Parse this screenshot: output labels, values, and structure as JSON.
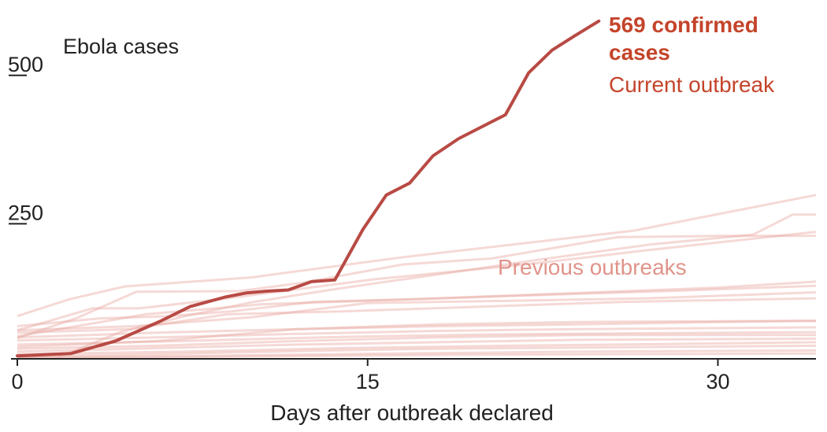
{
  "chart_data": {
    "type": "line",
    "xlabel": "Days after outbreak declared",
    "ylabel_unit": "Ebola cases",
    "x_ticks": [
      0,
      15,
      30
    ],
    "y_ticks": [
      250,
      500
    ],
    "xlim": [
      0,
      34.2
    ],
    "ylim": [
      0,
      570
    ],
    "highlight": {
      "label_value": "569 confirmed",
      "label_value_line2": "cases",
      "label_series": "Current outbreak",
      "color": "#b84a44",
      "points": [
        [
          0,
          5
        ],
        [
          2.3,
          9
        ],
        [
          4.2,
          30
        ],
        [
          6.1,
          63
        ],
        [
          7.4,
          88
        ],
        [
          8.9,
          104
        ],
        [
          9.8,
          111
        ],
        [
          10.7,
          114
        ],
        [
          11.6,
          116
        ],
        [
          12.6,
          130
        ],
        [
          13.6,
          133
        ],
        [
          14.8,
          218
        ],
        [
          15.8,
          276
        ],
        [
          16.8,
          296
        ],
        [
          17.8,
          342
        ],
        [
          18.9,
          371
        ],
        [
          19.9,
          391
        ],
        [
          20.9,
          411
        ],
        [
          21.9,
          482
        ],
        [
          22.9,
          520
        ],
        [
          23.9,
          545
        ],
        [
          24.9,
          569
        ]
      ]
    },
    "previous": {
      "label": "Previous outbreaks",
      "color": "#e9aba3",
      "series": [
        [
          [
            0,
            72
          ],
          [
            2.2,
            100
          ],
          [
            4.6,
            122
          ],
          [
            10,
            137
          ],
          [
            16.7,
            172
          ],
          [
            26.4,
            216
          ],
          [
            34.2,
            276
          ]
        ],
        [
          [
            0,
            48
          ],
          [
            3.2,
            85
          ],
          [
            5.2,
            85
          ],
          [
            8.6,
            100
          ],
          [
            15.3,
            134
          ],
          [
            22,
            160
          ],
          [
            27,
            183
          ],
          [
            34.2,
            214
          ]
        ],
        [
          [
            1.6,
            0
          ],
          [
            4.4,
            45
          ],
          [
            7.2,
            72
          ],
          [
            10,
            95
          ],
          [
            13.7,
            118
          ],
          [
            18.5,
            145
          ],
          [
            22.5,
            168
          ],
          [
            27.2,
            193
          ],
          [
            31.5,
            209
          ],
          [
            33.2,
            243
          ],
          [
            34.2,
            243
          ]
        ],
        [
          [
            0,
            35
          ],
          [
            2.5,
            68
          ],
          [
            5.1,
            113
          ],
          [
            9.5,
            114
          ],
          [
            12.2,
            128
          ],
          [
            16.5,
            159
          ],
          [
            20.3,
            169
          ],
          [
            25.7,
            205
          ],
          [
            30,
            207
          ],
          [
            34.2,
            207
          ]
        ],
        [
          [
            0,
            55
          ],
          [
            3.5,
            68
          ],
          [
            6.5,
            72
          ],
          [
            9.2,
            80
          ],
          [
            12.7,
            96
          ],
          [
            17.4,
            101
          ],
          [
            23.4,
            110
          ],
          [
            30,
            120
          ],
          [
            34.2,
            130
          ]
        ],
        [
          [
            0,
            38
          ],
          [
            5.5,
            75
          ],
          [
            10.5,
            92
          ],
          [
            16,
            99
          ],
          [
            22,
            107
          ],
          [
            28.5,
            115
          ],
          [
            34.2,
            123
          ]
        ],
        [
          [
            0,
            48
          ],
          [
            5,
            55
          ],
          [
            10,
            70
          ],
          [
            15,
            94
          ],
          [
            21.4,
            98
          ],
          [
            27,
            102
          ],
          [
            34.2,
            112
          ]
        ],
        [
          [
            0,
            44
          ],
          [
            4.8,
            50
          ],
          [
            9,
            75
          ],
          [
            14,
            80
          ],
          [
            20,
            88
          ],
          [
            26,
            96
          ],
          [
            34.2,
            102
          ]
        ],
        [
          [
            0,
            36
          ],
          [
            6,
            44
          ],
          [
            12,
            50
          ],
          [
            18,
            55
          ],
          [
            24,
            58
          ],
          [
            30,
            62
          ],
          [
            34.2,
            64
          ]
        ],
        [
          [
            0,
            20
          ],
          [
            6,
            30
          ],
          [
            12,
            50
          ],
          [
            18,
            58
          ],
          [
            24,
            62
          ],
          [
            34.2,
            64
          ]
        ],
        [
          [
            0,
            31
          ],
          [
            6,
            36
          ],
          [
            12,
            42
          ],
          [
            18,
            47
          ],
          [
            24,
            50
          ],
          [
            34.2,
            53
          ]
        ],
        [
          [
            0,
            24
          ],
          [
            7,
            30
          ],
          [
            14,
            37
          ],
          [
            20,
            41
          ],
          [
            26,
            43
          ],
          [
            34.2,
            45
          ]
        ],
        [
          [
            0,
            17
          ],
          [
            6,
            22
          ],
          [
            12,
            30
          ],
          [
            18,
            36
          ],
          [
            24,
            40
          ],
          [
            34.2,
            40
          ]
        ],
        [
          [
            0,
            12
          ],
          [
            6,
            18
          ],
          [
            12,
            24
          ],
          [
            18,
            28
          ],
          [
            24,
            32
          ],
          [
            34.2,
            34
          ]
        ],
        [
          [
            0,
            8
          ],
          [
            7,
            12
          ],
          [
            14,
            18
          ],
          [
            21,
            22
          ],
          [
            28,
            25
          ],
          [
            34.2,
            28
          ]
        ],
        [
          [
            0,
            4
          ],
          [
            6,
            8
          ],
          [
            12,
            13
          ],
          [
            18,
            17
          ],
          [
            24,
            19
          ],
          [
            34.2,
            22
          ]
        ],
        [
          [
            0,
            2
          ],
          [
            8,
            5
          ],
          [
            16,
            9
          ],
          [
            24,
            12
          ],
          [
            34.2,
            14
          ]
        ],
        [
          [
            0,
            1
          ],
          [
            10,
            4
          ],
          [
            20,
            7
          ],
          [
            34.2,
            9
          ]
        ]
      ]
    }
  }
}
